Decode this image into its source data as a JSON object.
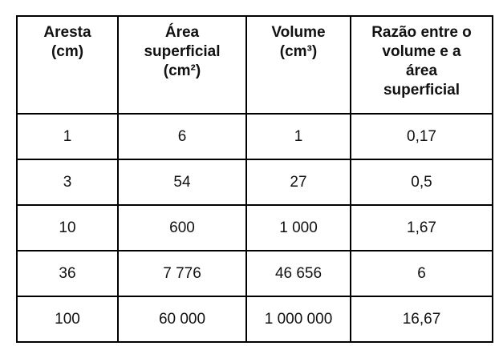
{
  "table": {
    "headers": [
      [
        "Aresta",
        "(cm)"
      ],
      [
        "Área",
        "superficial",
        "(cm²)"
      ],
      [
        "Volume",
        "(cm³)"
      ],
      [
        "Razão entre o",
        "volume e a",
        "área",
        "superficial"
      ]
    ],
    "rows": [
      [
        "1",
        "6",
        "1",
        "0,17"
      ],
      [
        "3",
        "54",
        "27",
        "0,5"
      ],
      [
        "10",
        "600",
        "1 000",
        "1,67"
      ],
      [
        "36",
        "7 776",
        "46 656",
        "6"
      ],
      [
        "100",
        "60 000",
        "1 000 000",
        "16,67"
      ]
    ]
  }
}
